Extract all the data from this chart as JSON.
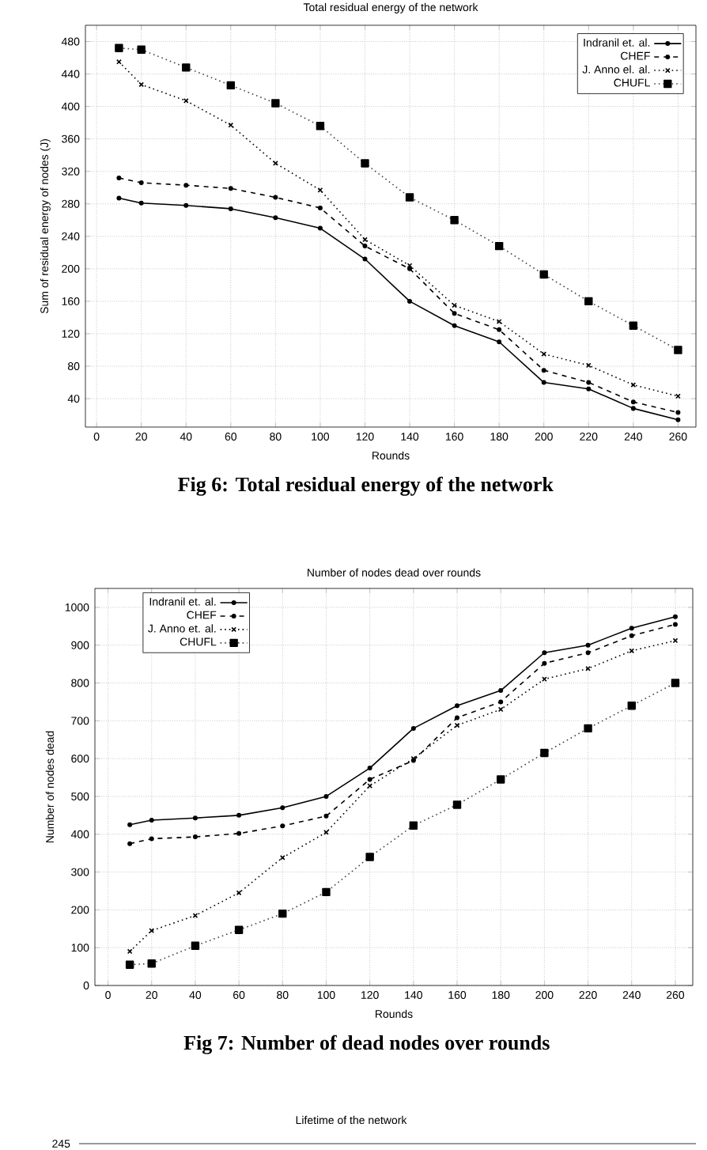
{
  "chart_data": [
    {
      "type": "line",
      "title": "Total residual energy of the network",
      "xlabel": "Rounds",
      "ylabel": "Sum of residual energy of nodes (J)",
      "annotations": [
        "Fig 6: Total residual energy of the network"
      ],
      "x": [
        10,
        20,
        40,
        60,
        80,
        100,
        120,
        140,
        160,
        180,
        200,
        220,
        240,
        260
      ],
      "series": [
        {
          "name": "Indranil et. al.",
          "color": "#000000",
          "marker": "circle",
          "line_style": "solid",
          "values": [
            287,
            281,
            278,
            274,
            263,
            250,
            212,
            160,
            130,
            110,
            60,
            52,
            28,
            14
          ]
        },
        {
          "name": "CHEF",
          "color": "#000000",
          "marker": "circle",
          "line_style": "dashed",
          "values": [
            312,
            306,
            303,
            299,
            288,
            275,
            228,
            200,
            145,
            125,
            75,
            60,
            36,
            23
          ]
        },
        {
          "name": "J. Anno el. al.",
          "color": "#000000",
          "marker": "cross",
          "line_style": "dotted",
          "values": [
            455,
            427,
            407,
            377,
            330,
            297,
            236,
            204,
            155,
            135,
            95,
            81,
            57,
            43
          ]
        },
        {
          "name": "CHUFL",
          "color": "#444444",
          "marker": "square",
          "line_style": "dotted",
          "values": [
            472,
            470,
            448,
            426,
            404,
            376,
            330,
            288,
            260,
            228,
            193,
            160,
            130,
            100
          ]
        }
      ],
      "xlim": [
        -5,
        268
      ],
      "ylim": [
        5,
        500
      ],
      "xticks": [
        0,
        20,
        40,
        60,
        80,
        100,
        120,
        140,
        160,
        180,
        200,
        220,
        240,
        260
      ],
      "yticks": [
        40,
        80,
        120,
        160,
        200,
        240,
        280,
        320,
        360,
        400,
        440,
        480
      ],
      "grid": true,
      "legend": "top right"
    },
    {
      "type": "line",
      "title": "Number of nodes dead over rounds",
      "xlabel": "Rounds",
      "ylabel": "Number of nodes dead",
      "annotations": [
        "Fig 7: Number of dead nodes over rounds"
      ],
      "x": [
        10,
        20,
        40,
        60,
        80,
        100,
        120,
        140,
        160,
        180,
        200,
        220,
        240,
        260
      ],
      "series": [
        {
          "name": "Indranil et. al.",
          "color": "#000000",
          "marker": "circle",
          "line_style": "solid",
          "values": [
            425,
            437,
            443,
            450,
            470,
            500,
            575,
            680,
            740,
            780,
            880,
            900,
            945,
            975
          ]
        },
        {
          "name": "CHEF",
          "color": "#000000",
          "marker": "circle",
          "line_style": "dashed",
          "values": [
            375,
            388,
            393,
            402,
            422,
            448,
            545,
            595,
            708,
            750,
            852,
            880,
            925,
            955
          ]
        },
        {
          "name": "J. Anno et. al.",
          "color": "#000000",
          "marker": "cross",
          "line_style": "dotted",
          "values": [
            90,
            145,
            185,
            245,
            338,
            405,
            528,
            600,
            688,
            730,
            810,
            838,
            885,
            912
          ]
        },
        {
          "name": "CHUFL",
          "color": "#444444",
          "marker": "square",
          "line_style": "dotted",
          "values": [
            55,
            58,
            105,
            147,
            190,
            247,
            340,
            423,
            478,
            545,
            615,
            680,
            740,
            800
          ]
        }
      ],
      "xlim": [
        -6,
        268
      ],
      "ylim": [
        0,
        1050
      ],
      "xticks": [
        0,
        20,
        40,
        60,
        80,
        100,
        120,
        140,
        160,
        180,
        200,
        220,
        240,
        260
      ],
      "yticks": [
        0,
        100,
        200,
        300,
        400,
        500,
        600,
        700,
        800,
        900,
        1000
      ],
      "grid": true,
      "legend": "top left"
    },
    {
      "type": "other",
      "title": "Lifetime of the network",
      "annotations": [
        "245"
      ]
    }
  ]
}
